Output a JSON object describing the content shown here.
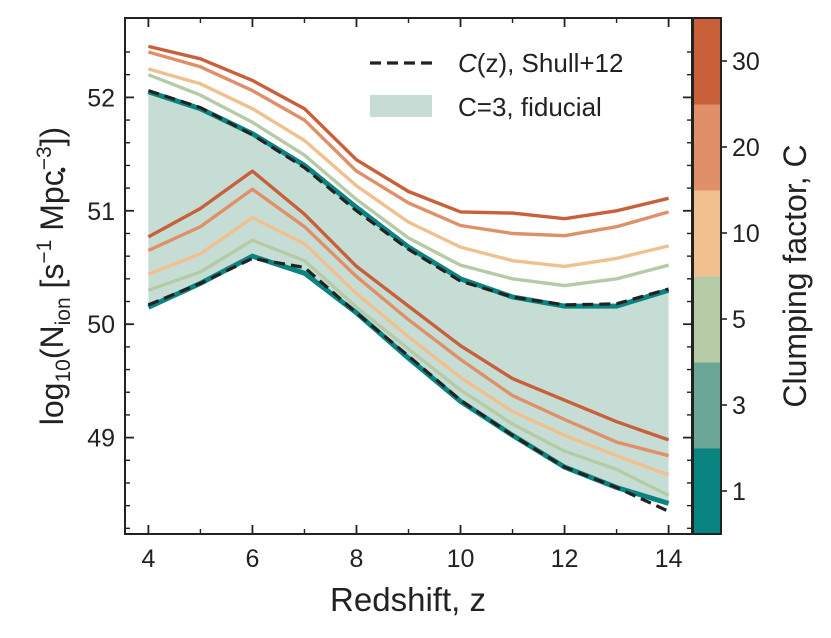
{
  "chart_data": {
    "type": "line",
    "title": "",
    "xlabel": "Redshift, z",
    "ylabel_parts": {
      "prefix": "log",
      "sub": "10",
      "n": "(N",
      "ion": "ion",
      "units": " [s",
      "exp1": "−1",
      "mpc": " Mpc",
      "exp3": "−3",
      "close": "])"
    },
    "xlim": [
      3.55,
      14.45
    ],
    "ylim": [
      48.15,
      52.7
    ],
    "xticks": [
      4,
      6,
      8,
      10,
      12,
      14
    ],
    "yticks": [
      49,
      50,
      51,
      52
    ],
    "x": [
      4,
      5,
      6,
      7,
      8,
      9,
      10,
      11,
      12,
      13,
      14
    ],
    "band": {
      "name": "C=3, fiducial",
      "color": "#c6ddd6",
      "upper": [
        52.05,
        51.9,
        51.68,
        51.4,
        51.03,
        50.68,
        50.4,
        50.24,
        50.16,
        50.16,
        50.3
      ],
      "lower": [
        50.15,
        50.36,
        50.6,
        50.45,
        50.1,
        49.7,
        49.32,
        49.02,
        48.74,
        48.56,
        48.42
      ]
    },
    "series": [
      {
        "name": "C=30 upper",
        "color": "#c8603a",
        "values": [
          52.45,
          52.34,
          52.15,
          51.9,
          51.45,
          51.17,
          50.99,
          50.98,
          50.93,
          51.0,
          51.11
        ]
      },
      {
        "name": "C=20 upper",
        "color": "#e09068",
        "values": [
          52.4,
          52.27,
          52.06,
          51.8,
          51.35,
          51.07,
          50.87,
          50.8,
          50.78,
          50.86,
          50.99
        ]
      },
      {
        "name": "C=10 upper",
        "color": "#f0c08e",
        "values": [
          52.25,
          52.12,
          51.9,
          51.62,
          51.22,
          50.9,
          50.68,
          50.56,
          50.51,
          50.58,
          50.69
        ]
      },
      {
        "name": "C=5 upper",
        "color": "#b4cba6",
        "values": [
          52.2,
          52.02,
          51.78,
          51.49,
          51.1,
          50.76,
          50.52,
          50.4,
          50.34,
          50.4,
          50.52
        ]
      },
      {
        "name": "C=30 lower",
        "color": "#c8603a",
        "values": [
          50.77,
          51.02,
          51.35,
          50.97,
          50.51,
          50.16,
          49.81,
          49.52,
          49.33,
          49.14,
          48.98
        ]
      },
      {
        "name": "C=20 lower",
        "color": "#e09068",
        "values": [
          50.65,
          50.86,
          51.19,
          50.86,
          50.42,
          50.04,
          49.69,
          49.37,
          49.16,
          48.96,
          48.84
        ]
      },
      {
        "name": "C=10 lower",
        "color": "#f0c08e",
        "values": [
          50.44,
          50.62,
          50.94,
          50.71,
          50.27,
          49.89,
          49.53,
          49.23,
          49.02,
          48.84,
          48.67
        ]
      },
      {
        "name": "C=5 lower",
        "color": "#b4cba6",
        "values": [
          50.3,
          50.46,
          50.74,
          50.56,
          50.15,
          49.78,
          49.42,
          49.12,
          48.88,
          48.72,
          48.49
        ]
      }
    ],
    "shull": {
      "name_parts": {
        "c": "C",
        "z": "(z)",
        "rest": ", Shull+12"
      },
      "upper": [
        52.06,
        51.91,
        51.67,
        51.38,
        51.0,
        50.66,
        50.38,
        50.24,
        50.17,
        50.18,
        50.31
      ],
      "lower": [
        50.17,
        50.36,
        50.58,
        50.5,
        50.1,
        49.72,
        49.33,
        49.02,
        48.74,
        48.56,
        48.35
      ]
    },
    "legend": {
      "location": "top-right",
      "entries": [
        "C(z), Shull+12",
        "C=3, fiducial"
      ]
    },
    "colorbar": {
      "label": "Clumping factor, C",
      "bands": [
        "#0a8480",
        "#6aa797",
        "#b4cba6",
        "#f0c08e",
        "#e09068",
        "#c8603a"
      ],
      "ticks": [
        "1",
        "3",
        "5",
        "10",
        "20",
        "30"
      ]
    }
  }
}
